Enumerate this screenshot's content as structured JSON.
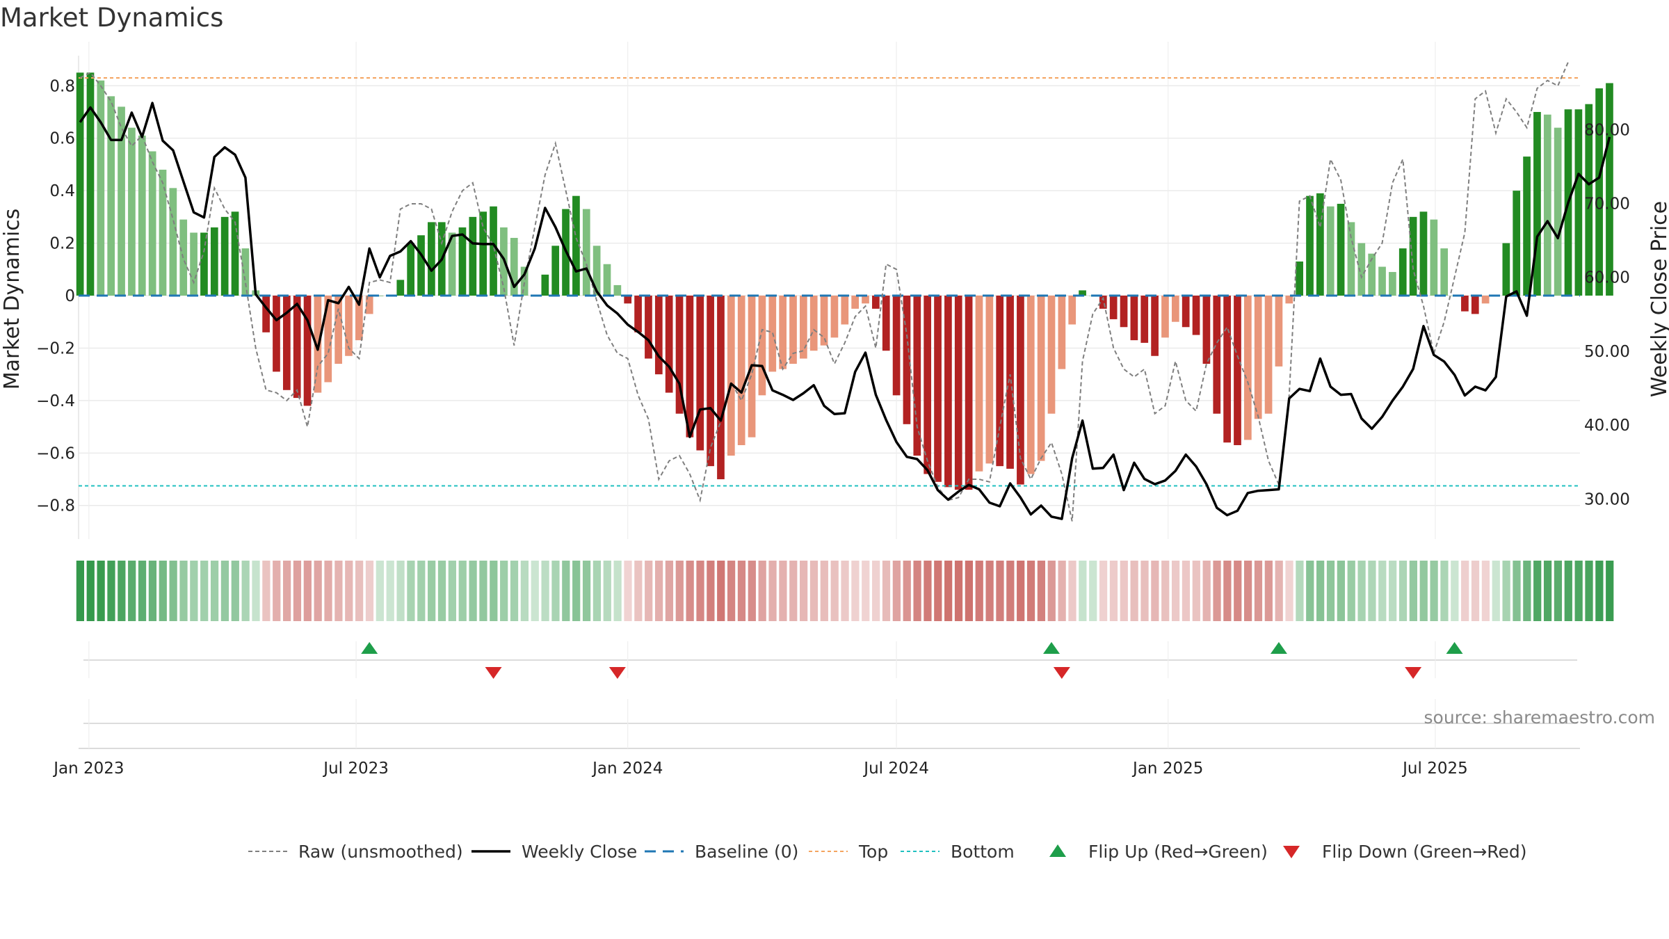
{
  "title": "Market Dynamics",
  "source": "source: sharemaestro.com",
  "colors": {
    "strong_green": "#228b22",
    "light_green": "#7fbf7f",
    "strong_red": "#b22222",
    "light_red": "#e9967a",
    "raw": "#7f7f7f",
    "close": "#000000",
    "baseline": "#1f77b4",
    "top": "#f4a460",
    "bottom": "#20c0c0",
    "flip_up": "#1e9e4a",
    "flip_down": "#d62728"
  },
  "chart_data": {
    "type": "bar",
    "left_axis": {
      "label": "Market Dynamics",
      "ylim": [
        -0.92,
        0.92
      ],
      "ticks": [
        0.8,
        0.6,
        0.4,
        0.2,
        0,
        -0.2,
        -0.4,
        -0.6,
        -0.8
      ],
      "tick_labels": [
        "0.8",
        "0.6",
        "0.4",
        "0.2",
        "0",
        "−0.2",
        "−0.4",
        "−0.6",
        "−0.8"
      ]
    },
    "right_axis": {
      "label": "Weekly Close Price",
      "ylim": [
        24.85,
        90.2
      ],
      "ticks": [
        80,
        70,
        60,
        50,
        40,
        30
      ],
      "tick_labels": [
        "80.00",
        "70.00",
        "60.00",
        "50.00",
        "40.00",
        "30.00"
      ]
    },
    "x_axis": {
      "start": "2022-12-25",
      "end": "2025-10-07",
      "ticks": [
        "2023-01-01",
        "2023-07-01",
        "2024-01-01",
        "2024-07-01",
        "2025-01-01",
        "2025-07-01"
      ],
      "tick_labels": [
        "Jan 2023",
        "Jul 2023",
        "Jan 2024",
        "Jul 2024",
        "Jan 2025",
        "Jul 2025"
      ]
    },
    "top_level": 0.83,
    "bottom_level": -0.725,
    "baseline": 0,
    "grid": true,
    "legend_position": "bottom-center",
    "series": [
      {
        "name": "Raw (unsmoothed)"
      },
      {
        "name": "Weekly Close"
      },
      {
        "name": "Baseline (0)"
      },
      {
        "name": "Top"
      },
      {
        "name": "Bottom"
      },
      {
        "name": "Flip Up (Red→Green)"
      },
      {
        "name": "Flip Down (Green→Red)"
      }
    ],
    "first_week": "2022-12-26",
    "dynamics": [
      0.85,
      0.85,
      0.82,
      0.76,
      0.72,
      0.64,
      0.61,
      0.55,
      0.48,
      0.41,
      0.29,
      0.24,
      0.24,
      0.26,
      0.3,
      0.32,
      0.18,
      0.02,
      -0.14,
      -0.29,
      -0.36,
      -0.39,
      -0.42,
      -0.37,
      -0.33,
      -0.26,
      -0.23,
      -0.17,
      -0.07,
      0.0,
      0.0,
      0.06,
      0.2,
      0.23,
      0.28,
      0.28,
      0.24,
      0.26,
      0.3,
      0.32,
      0.34,
      0.26,
      0.22,
      0.11,
      0.0,
      0.08,
      0.19,
      0.33,
      0.38,
      0.33,
      0.19,
      0.12,
      0.04,
      -0.03,
      -0.14,
      -0.24,
      -0.3,
      -0.37,
      -0.45,
      -0.54,
      -0.59,
      -0.65,
      -0.7,
      -0.61,
      -0.57,
      -0.54,
      -0.38,
      -0.29,
      -0.28,
      -0.26,
      -0.24,
      -0.21,
      -0.19,
      -0.16,
      -0.11,
      -0.05,
      -0.03,
      -0.05,
      -0.21,
      -0.38,
      -0.49,
      -0.61,
      -0.68,
      -0.71,
      -0.73,
      -0.74,
      -0.74,
      -0.67,
      -0.64,
      -0.65,
      -0.66,
      -0.72,
      -0.68,
      -0.63,
      -0.45,
      -0.28,
      -0.11,
      0.02,
      0.0,
      -0.05,
      -0.09,
      -0.12,
      -0.17,
      -0.18,
      -0.23,
      -0.16,
      -0.1,
      -0.12,
      -0.15,
      -0.26,
      -0.45,
      -0.56,
      -0.57,
      -0.55,
      -0.47,
      -0.45,
      -0.27,
      -0.03,
      0.13,
      0.38,
      0.39,
      0.34,
      0.35,
      0.28,
      0.2,
      0.16,
      0.11,
      0.09,
      0.18,
      0.3,
      0.32,
      0.29,
      0.18,
      0.0,
      -0.06,
      -0.07,
      -0.03,
      0.0,
      0.2,
      0.4,
      0.53,
      0.7,
      0.69,
      0.64,
      0.71,
      0.71,
      0.73,
      0.79,
      0.81
    ],
    "raw": [
      0.83,
      0.85,
      0.8,
      0.74,
      0.64,
      0.57,
      0.61,
      0.51,
      0.43,
      0.29,
      0.14,
      0.05,
      0.17,
      0.41,
      0.33,
      0.28,
      0.05,
      -0.2,
      -0.36,
      -0.37,
      -0.4,
      -0.36,
      -0.5,
      -0.27,
      -0.22,
      -0.05,
      -0.2,
      -0.24,
      0.05,
      0.06,
      0.05,
      0.33,
      0.35,
      0.35,
      0.33,
      0.2,
      0.32,
      0.4,
      0.43,
      0.26,
      0.19,
      0.03,
      -0.19,
      0.05,
      0.26,
      0.46,
      0.58,
      0.4,
      0.22,
      0.12,
      -0.02,
      -0.15,
      -0.22,
      -0.24,
      -0.38,
      -0.47,
      -0.7,
      -0.63,
      -0.61,
      -0.68,
      -0.78,
      -0.58,
      -0.48,
      -0.33,
      -0.4,
      -0.3,
      -0.13,
      -0.14,
      -0.28,
      -0.22,
      -0.21,
      -0.13,
      -0.16,
      -0.26,
      -0.18,
      -0.08,
      -0.04,
      -0.2,
      0.12,
      0.1,
      -0.15,
      -0.5,
      -0.63,
      -0.73,
      -0.78,
      -0.77,
      -0.7,
      -0.7,
      -0.71,
      -0.5,
      -0.3,
      -0.62,
      -0.7,
      -0.62,
      -0.56,
      -0.68,
      -0.86,
      -0.25,
      -0.07,
      -0.01,
      -0.2,
      -0.28,
      -0.31,
      -0.28,
      -0.45,
      -0.42,
      -0.25,
      -0.4,
      -0.44,
      -0.26,
      -0.18,
      -0.12,
      -0.23,
      -0.33,
      -0.46,
      -0.63,
      -0.72,
      -0.38,
      0.36,
      0.38,
      0.26,
      0.52,
      0.44,
      0.22,
      0.07,
      0.14,
      0.2,
      0.43,
      0.52,
      0.1,
      -0.04,
      -0.22,
      -0.1,
      0.07,
      0.24,
      0.75,
      0.78,
      0.62,
      0.75,
      0.7,
      0.64,
      0.79,
      0.82,
      0.8,
      0.89
    ],
    "close": [
      81,
      83,
      81,
      78.6,
      78.6,
      82.3,
      79,
      83.6,
      78.5,
      77.2,
      73,
      68.8,
      68.1,
      76.3,
      77.6,
      76.6,
      73.5,
      57.7,
      55.9,
      54.2,
      55.2,
      56.4,
      54.2,
      50.2,
      56.9,
      56.5,
      58.7,
      56.3,
      63.9,
      60,
      62.9,
      63.5,
      64.9,
      63.1,
      60.9,
      62.4,
      65.6,
      65.8,
      64.6,
      64.5,
      64.5,
      62.5,
      58.7,
      60.4,
      63.9,
      69.4,
      66.8,
      63.6,
      60.8,
      61.2,
      58.1,
      56.2,
      55.1,
      53.6,
      52.6,
      51.5,
      49.3,
      47.9,
      45.6,
      38.4,
      42.1,
      42.3,
      40.6,
      45.6,
      44.4,
      48.1,
      48,
      44.7,
      44.1,
      43.4,
      44.3,
      45.4,
      42.6,
      41.5,
      41.6,
      47.2,
      49.8,
      44.1,
      40.7,
      37.7,
      35.7,
      35.4,
      33.9,
      31.2,
      29.9,
      31,
      31.9,
      31.3,
      29.5,
      29,
      32.1,
      30.2,
      27.9,
      29.1,
      27.6,
      27.3,
      35.5,
      40.6,
      34.1,
      34.2,
      36,
      31.2,
      34.9,
      32.7,
      32,
      32.5,
      33.8,
      36,
      34.4,
      32,
      28.8,
      27.8,
      28.4,
      30.8,
      31.1,
      31.2,
      31.3,
      43.6,
      44.9,
      44.6,
      49,
      45.2,
      44.1,
      44.2,
      40.9,
      39.5,
      41.1,
      43.3,
      45.2,
      47.6,
      53.4,
      49.5,
      48.6,
      46.8,
      44,
      45.2,
      44.7,
      46.5,
      57.4,
      58.1,
      54.8,
      65.5,
      67.6,
      65.3,
      70.1,
      74,
      72.6,
      73.5,
      79
    ],
    "flips_up": [
      "2023-07-10",
      "2024-10-14",
      "2025-03-17",
      "2025-07-14"
    ],
    "flips_down": [
      "2023-10-02",
      "2023-12-25",
      "2024-10-21",
      "2025-06-16"
    ]
  }
}
